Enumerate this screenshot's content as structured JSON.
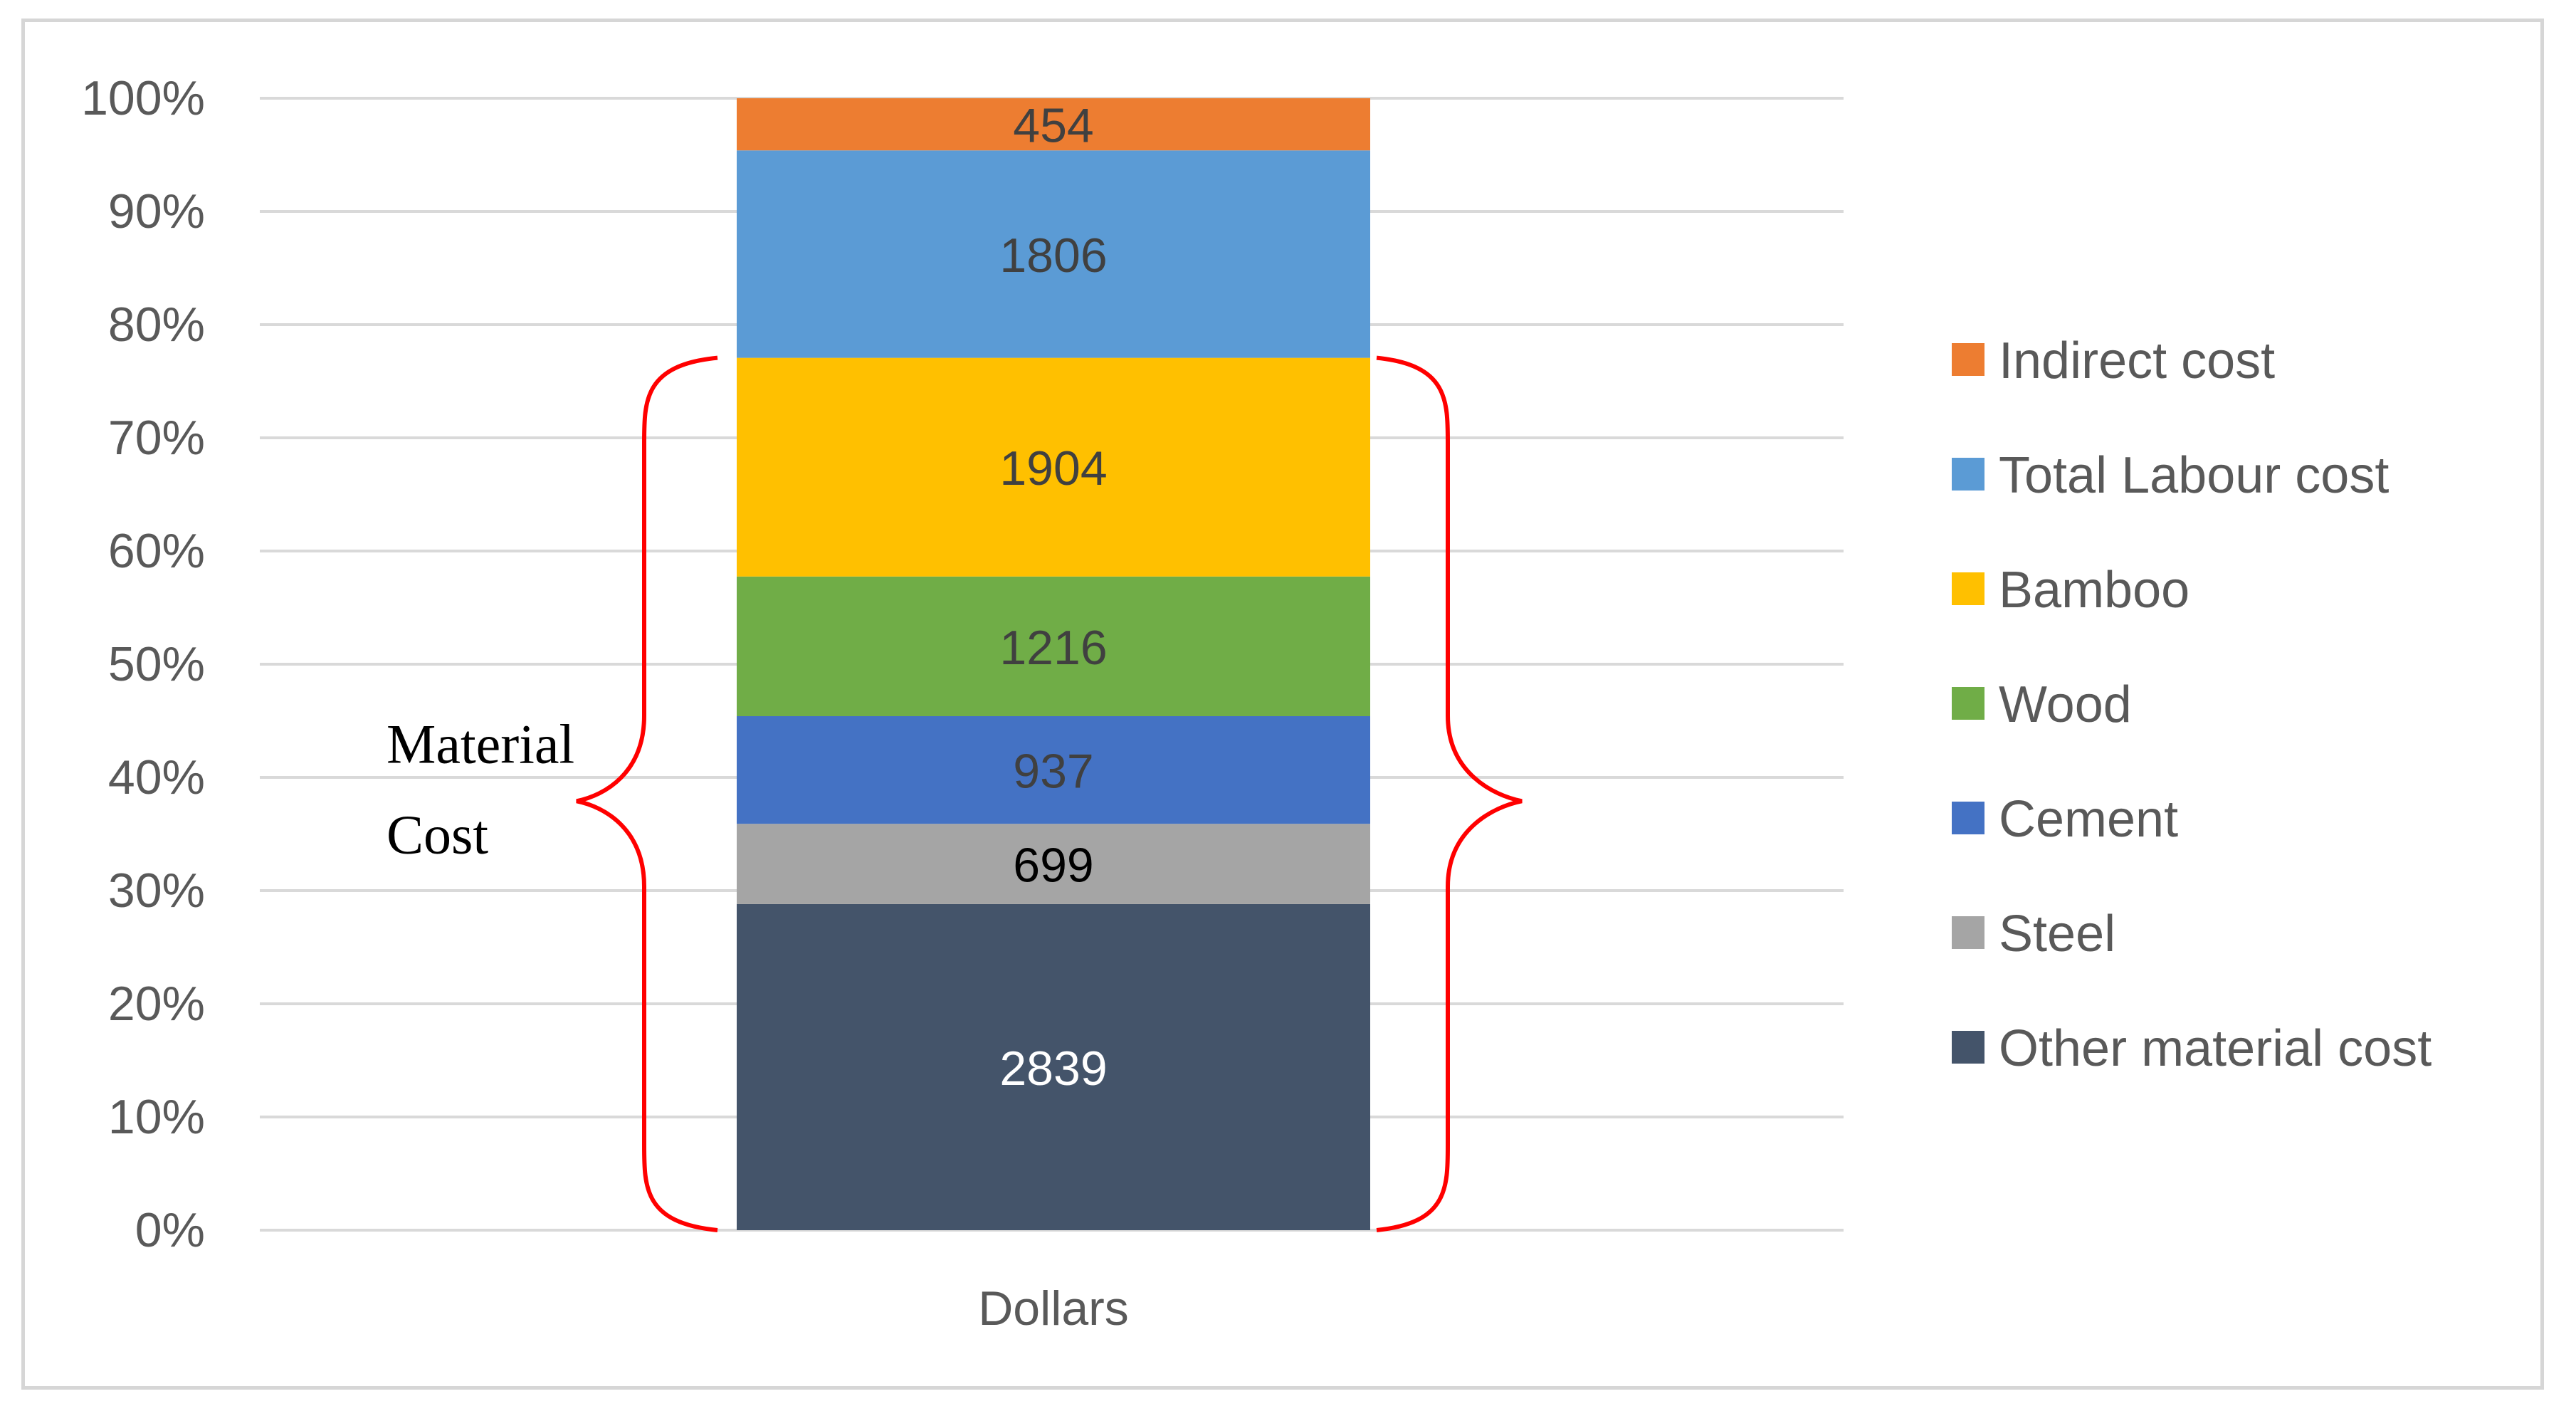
{
  "chart_data": {
    "type": "bar",
    "stacked": true,
    "normalized": "percent",
    "categories": [
      "Dollars"
    ],
    "series": [
      {
        "name": "Other material cost",
        "values": [
          2839
        ],
        "color": "#44546a",
        "label_color": "#ffffff"
      },
      {
        "name": "Steel",
        "values": [
          699
        ],
        "color": "#a5a5a5",
        "label_color": "#000000"
      },
      {
        "name": "Cement",
        "values": [
          937
        ],
        "color": "#4472c4",
        "label_color": "#404040"
      },
      {
        "name": "Wood",
        "values": [
          1216
        ],
        "color": "#70ad47",
        "label_color": "#404040"
      },
      {
        "name": "Bamboo",
        "values": [
          1904
        ],
        "color": "#ffc000",
        "label_color": "#404040"
      },
      {
        "name": "Total Labour cost",
        "values": [
          1806
        ],
        "color": "#5b9bd5",
        "label_color": "#404040"
      },
      {
        "name": "Indirect cost",
        "values": [
          454
        ],
        "color": "#ed7d31",
        "label_color": "#404040"
      }
    ],
    "y_ticks": [
      "0%",
      "10%",
      "20%",
      "30%",
      "40%",
      "50%",
      "60%",
      "70%",
      "80%",
      "90%",
      "100%"
    ],
    "ylim": [
      0,
      100
    ],
    "grid": true,
    "legend_position": "right",
    "legend_order": [
      "Indirect cost",
      "Total Labour cost",
      "Bamboo",
      "Wood",
      "Cement",
      "Steel",
      "Other material cost"
    ],
    "annotation": {
      "text_lines": [
        "Material",
        "Cost"
      ],
      "bracket_color": "#ff0000",
      "spans_series": [
        "Other material cost",
        "Steel",
        "Cement",
        "Wood",
        "Bamboo"
      ]
    }
  }
}
